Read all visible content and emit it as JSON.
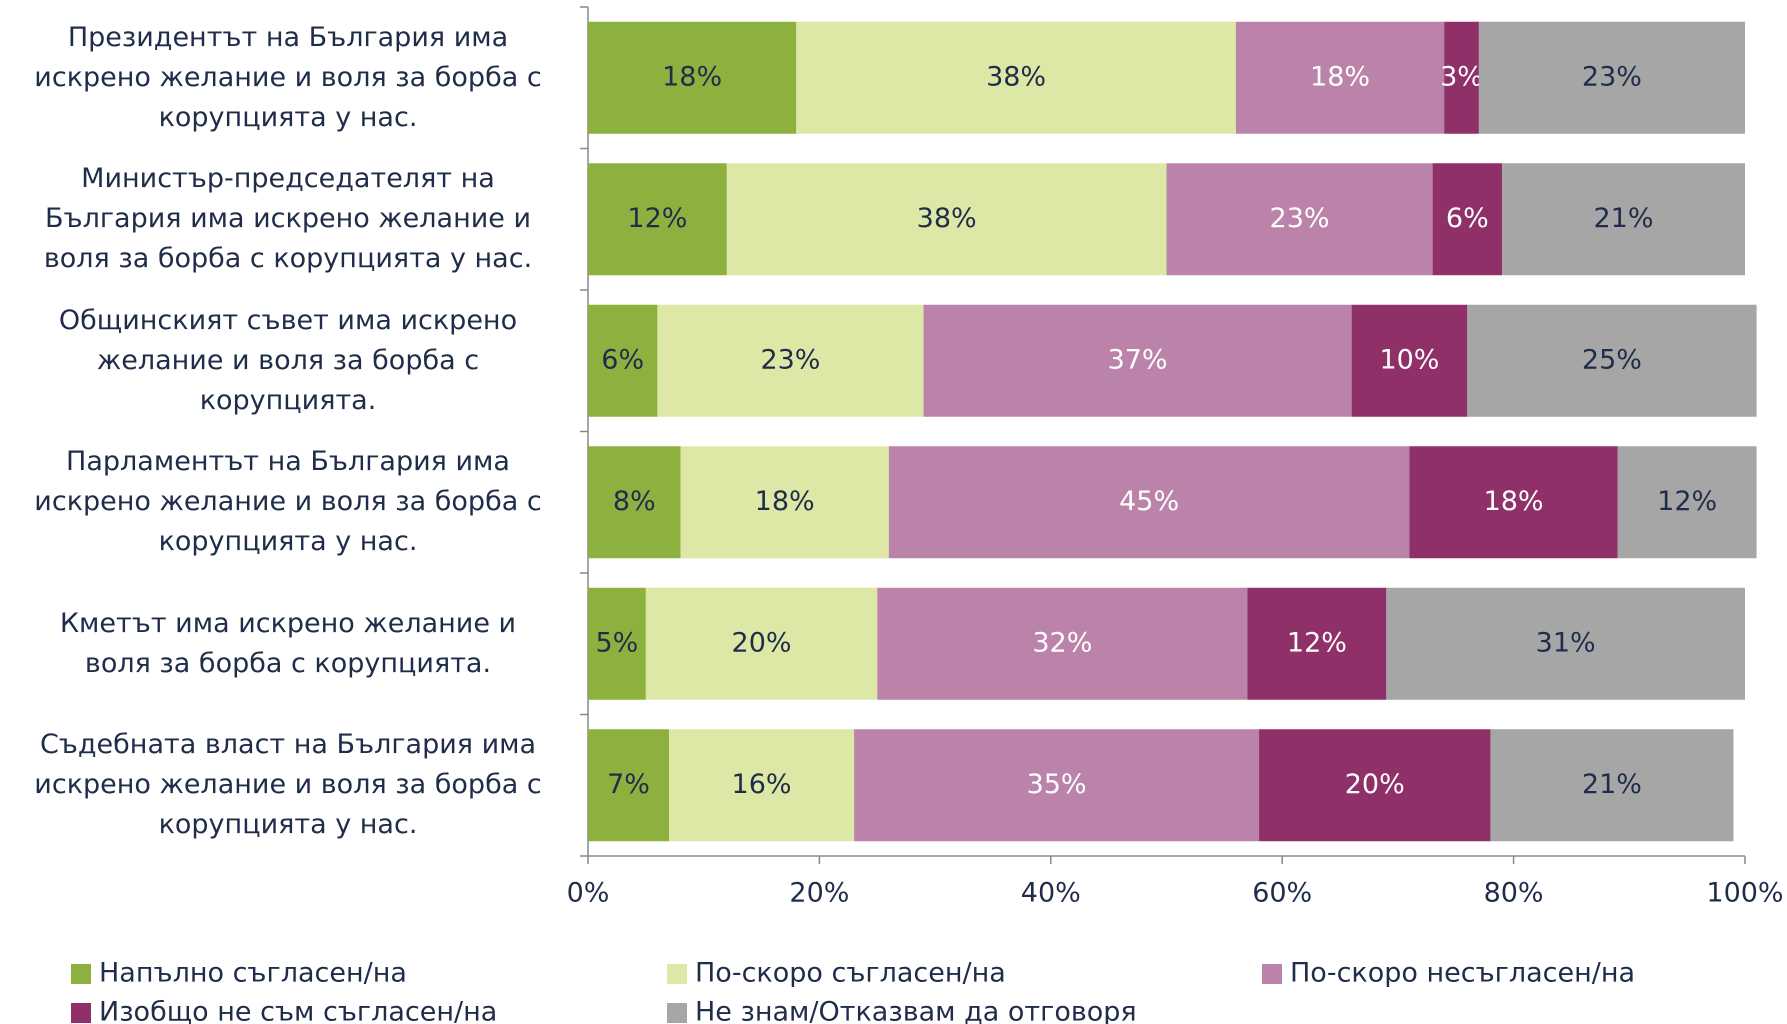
{
  "chart_data": {
    "type": "bar",
    "orientation": "horizontal",
    "stacked": true,
    "categories": [
      "Президентът на България има\nискрено желание и воля за борба с\nкорупцията у нас.",
      "Министър-председателят на\nБългария има искрено желание и\nволя за борба с корупцията у нас.",
      "Общинският съвет има искрено\nжелание и воля за борба с\nкорупцията.",
      "Парламентът на България има\nискрено желание и воля за борба с\nкорупцията у нас.",
      "Кметът има искрено желание и\nволя за борба с корупцията.",
      "Съдебната власт на България има\nискрено желание и воля за борба с\nкорупцията у нас."
    ],
    "series": [
      {
        "name": "Напълно съгласен/на",
        "color": "#8db13f",
        "label_color": "#1f2d4a",
        "values": [
          18,
          12,
          6,
          8,
          5,
          7
        ],
        "value_labels": [
          "18%",
          "12%",
          "6%",
          "8%",
          "5%",
          "7%"
        ]
      },
      {
        "name": "По-скоро съгласен/на",
        "color": "#dde8a6",
        "label_color": "#1f2d4a",
        "values": [
          38,
          38,
          23,
          18,
          20,
          16
        ],
        "value_labels": [
          "38%",
          "38%",
          "23%",
          "18%",
          "20%",
          "16%"
        ]
      },
      {
        "name": "По-скоро несъгласен/на",
        "color": "#bb83a9",
        "label_color": "#ffffff",
        "values": [
          18,
          23,
          37,
          45,
          32,
          35
        ],
        "value_labels": [
          "18%",
          "23%",
          "37%",
          "45%",
          "32%",
          "35%"
        ]
      },
      {
        "name": "Изобщо не съм съгласен/на",
        "color": "#8f3068",
        "label_color": "#ffffff",
        "values": [
          3,
          6,
          10,
          18,
          12,
          20
        ],
        "value_labels": [
          "3%",
          "6%",
          "10%",
          "18%",
          "12%",
          "20%"
        ]
      },
      {
        "name": "Не знам/Отказвам да отговоря",
        "color": "#a6a6a6",
        "label_color": "#1f2d4a",
        "values": [
          23,
          21,
          25,
          12,
          31,
          21
        ],
        "value_labels": [
          "23%",
          "21%",
          "25%",
          "12%",
          "31%",
          "21%"
        ]
      }
    ],
    "xlim": [
      0,
      100
    ],
    "xticks": [
      {
        "value": 0,
        "label": "0%"
      },
      {
        "value": 20,
        "label": "20%"
      },
      {
        "value": 40,
        "label": "40%"
      },
      {
        "value": 60,
        "label": "60%"
      },
      {
        "value": 80,
        "label": "80%"
      },
      {
        "value": 100,
        "label": "100%"
      }
    ],
    "legend": "bottom"
  }
}
